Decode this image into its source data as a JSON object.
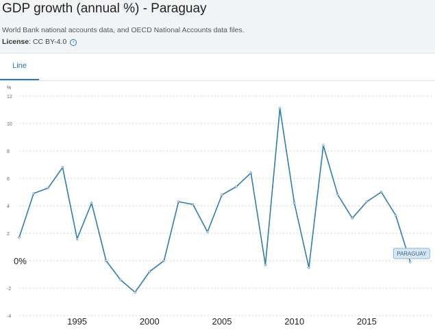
{
  "header": {
    "title": "GDP growth (annual %) - Paraguay",
    "source": "World Bank national accounts data, and OECD National Accounts data files.",
    "license_label": "License",
    "license_value": ": CC BY-4.0"
  },
  "tabs": [
    {
      "label": "Line"
    }
  ],
  "colors": {
    "series": "#2c7bb1",
    "accent": "#2b79c2"
  },
  "chart_data": {
    "type": "line",
    "title": "GDP growth (annual %) - Paraguay",
    "ylabel": "%",
    "ylim": [
      -4,
      12
    ],
    "yticks": [
      12,
      10,
      8,
      6,
      4,
      2,
      0,
      -2,
      -4
    ],
    "ytick_labels": [
      "12",
      "10",
      "8",
      "6",
      "4",
      "2",
      "0%",
      "-2",
      "-4"
    ],
    "xlim": [
      1991,
      2019
    ],
    "xticks": [
      1995,
      2000,
      2005,
      2010,
      2015
    ],
    "xtick_labels": [
      "1995",
      "2000",
      "2005",
      "2010",
      "2015"
    ],
    "series": [
      {
        "name": "PARAGUAY",
        "x": [
          1991,
          1992,
          1993,
          1994,
          1995,
          1996,
          1997,
          1998,
          1999,
          2000,
          2001,
          2002,
          2003,
          2004,
          2005,
          2006,
          2007,
          2008,
          2009,
          2010,
          2011,
          2012,
          2013,
          2014,
          2015,
          2016,
          2017,
          2018
        ],
        "values": [
          1.7,
          4.9,
          5.3,
          6.8,
          1.6,
          4.2,
          0.0,
          -1.4,
          -2.3,
          -0.8,
          0.0,
          4.3,
          4.1,
          2.1,
          4.8,
          5.4,
          6.4,
          -0.3,
          11.1,
          4.2,
          -0.5,
          8.4,
          4.8,
          3.1,
          4.3,
          5.0,
          3.3,
          -0.1
        ]
      }
    ],
    "end_label": "PARAGUAY",
    "grid": true
  }
}
